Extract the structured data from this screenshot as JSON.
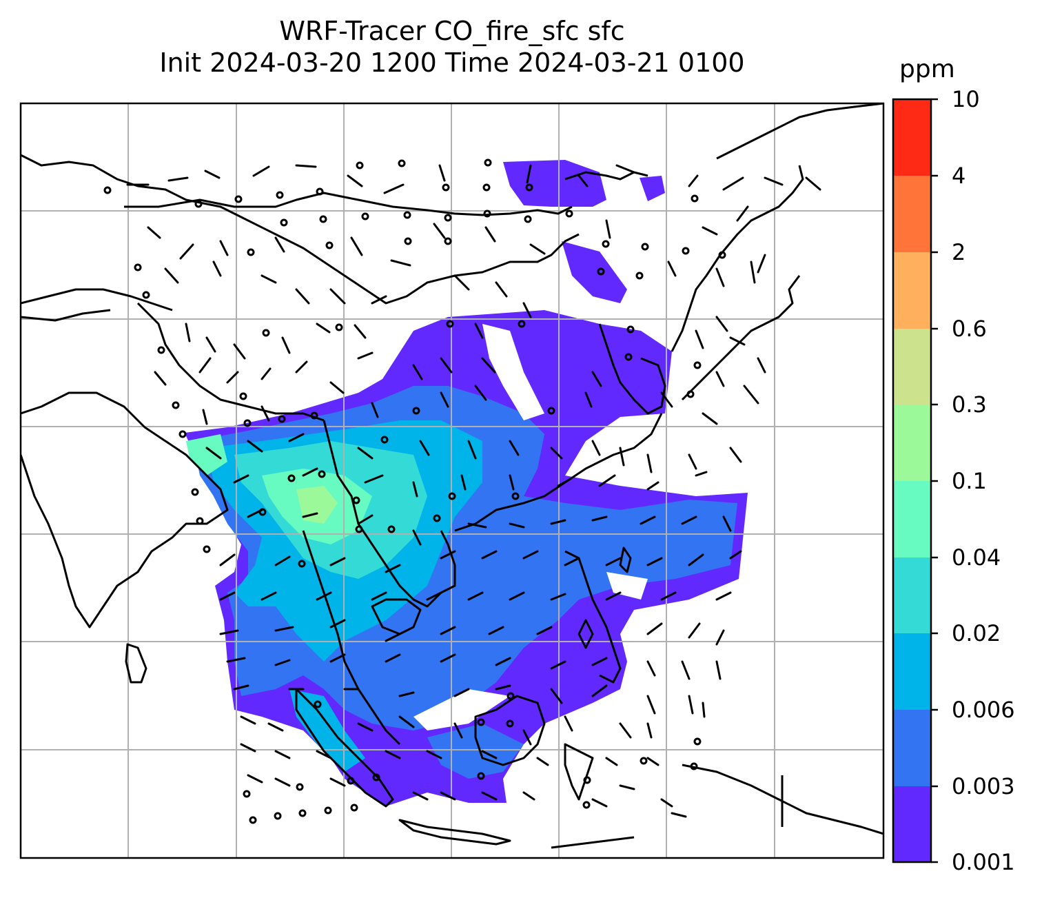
{
  "title": {
    "line1": "WRF-Tracer CO_fire_sfc sfc",
    "line2": "Init 2024-03-20 1200 Time 2024-03-21 0100"
  },
  "colorbar": {
    "unit": "ppm",
    "ticks": [
      "10",
      "4",
      "2",
      "0.6",
      "0.3",
      "0.1",
      "0.04",
      "0.02",
      "0.006",
      "0.003",
      "0.001"
    ],
    "colors_bottom_to_top": [
      "#6229ff",
      "#3374f3",
      "#00b4e9",
      "#34dad6",
      "#67fbc1",
      "#9bf99a",
      "#cde28c",
      "#ffb05c",
      "#ff7438",
      "#ff2a16"
    ]
  },
  "map": {
    "region": "South and East Asia to Maritime Southeast Asia",
    "gridlines": true,
    "coastlines": true,
    "country_borders": true,
    "wind_barbs": true,
    "colors": {
      "coast": "#000000",
      "grid": "#b0b0b0"
    }
  }
}
